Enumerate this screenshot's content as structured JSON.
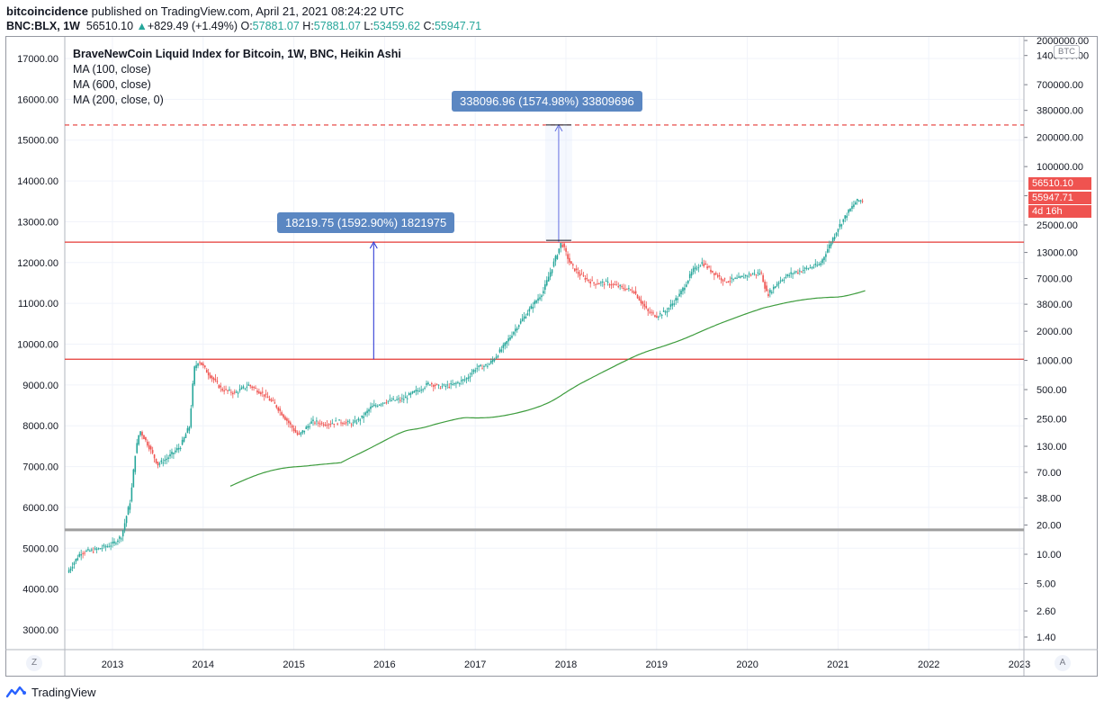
{
  "header": {
    "publisher": "bitcoincidence",
    "published_text": "published on TradingView.com, April 21, 2021 08:24:22 UTC",
    "symbol_line": "BNC:BLX, 1W",
    "last": "56510.10",
    "change": "+829.49 (+1.49%)",
    "open_label": "O:",
    "open": "57881.07",
    "high_label": "H:",
    "high": "57881.07",
    "low_label": "L:",
    "low": "53459.62",
    "close_label": "C:",
    "close": "55947.71"
  },
  "legend": {
    "title": "BraveNewCoin Liquid Index for Bitcoin, 1W, BNC, Heikin Ashi",
    "ma1": "MA (100, close)",
    "ma2": "MA (600, close)",
    "ma3": "MA (200, close, 0)"
  },
  "callouts": {
    "upper": "338096.96 (1574.98%) 33809696",
    "lower": "18219.75 (1592.90%) 1821975"
  },
  "price_boxes": {
    "last": "56510.10",
    "close": "55947.71",
    "countdown": "4d 16h"
  },
  "currency_tag": "BTC",
  "corner_left": "Z",
  "corner_right": "A",
  "footer": {
    "brand": "TradingView"
  },
  "colors": {
    "up": "#26a69a",
    "down": "#ef5350",
    "ma_blue": "#3f33a6",
    "ma_green": "#3d9c3d",
    "level_red": "#e53935",
    "measure_blue": "#1f2bd1",
    "callout_bg": "#5b87c2"
  },
  "chart_data": {
    "type": "candlestick",
    "y_left_ticks": [
      "17000.00",
      "16000.00",
      "15000.00",
      "14000.00",
      "13000.00",
      "12000.00",
      "11000.00",
      "10000.00",
      "9000.00",
      "8000.00",
      "7000.00",
      "6000.00",
      "5000.00",
      "4000.00",
      "3000.00"
    ],
    "y_right_ticks": [
      "2000000.00",
      "1400000.00",
      "700000.00",
      "380000.00",
      "200000.00",
      "100000.00",
      "50000.00",
      "25000.00",
      "13000.00",
      "7000.00",
      "3800.00",
      "2000.00",
      "1000.00",
      "500.00",
      "250.00",
      "130.00",
      "70.00",
      "38.00",
      "20.00",
      "10.00",
      "5.00",
      "2.60",
      "1.40"
    ],
    "y_right_log_scale": true,
    "x_ticks": [
      "2013",
      "2014",
      "2015",
      "2016",
      "2017",
      "2018",
      "2019",
      "2020",
      "2021",
      "2022",
      "2023"
    ],
    "x_range": [
      "2012-07",
      "2023-01"
    ],
    "horizontal_levels_left": [
      12500,
      9630,
      5450,
      15370
    ],
    "last_price": 56510.1,
    "close_price": 55947.71,
    "series": [
      {
        "name": "MA (100, close)"
      },
      {
        "name": "MA (600, close)"
      }
    ],
    "approx_path_left_units": [
      [
        2012.5,
        4400
      ],
      [
        2012.65,
        4900
      ],
      [
        2012.8,
        4950
      ],
      [
        2013.0,
        5100
      ],
      [
        2013.1,
        5300
      ],
      [
        2013.2,
        6200
      ],
      [
        2013.25,
        7300
      ],
      [
        2013.3,
        7900
      ],
      [
        2013.4,
        7500
      ],
      [
        2013.5,
        7050
      ],
      [
        2013.6,
        7200
      ],
      [
        2013.75,
        7500
      ],
      [
        2013.85,
        8000
      ],
      [
        2013.9,
        9400
      ],
      [
        2013.95,
        9600
      ],
      [
        2014.05,
        9300
      ],
      [
        2014.2,
        8900
      ],
      [
        2014.35,
        8800
      ],
      [
        2014.5,
        9000
      ],
      [
        2014.65,
        8800
      ],
      [
        2014.8,
        8500
      ],
      [
        2014.95,
        8050
      ],
      [
        2015.05,
        7750
      ],
      [
        2015.2,
        8100
      ],
      [
        2015.35,
        8050
      ],
      [
        2015.5,
        8100
      ],
      [
        2015.65,
        8050
      ],
      [
        2015.75,
        8200
      ],
      [
        2015.85,
        8450
      ],
      [
        2016.0,
        8600
      ],
      [
        2016.2,
        8650
      ],
      [
        2016.35,
        8850
      ],
      [
        2016.5,
        9050
      ],
      [
        2016.6,
        8950
      ],
      [
        2016.75,
        9000
      ],
      [
        2016.9,
        9150
      ],
      [
        2017.0,
        9400
      ],
      [
        2017.15,
        9500
      ],
      [
        2017.3,
        9900
      ],
      [
        2017.45,
        10400
      ],
      [
        2017.6,
        10850
      ],
      [
        2017.75,
        11300
      ],
      [
        2017.85,
        11900
      ],
      [
        2017.95,
        12500
      ],
      [
        2018.05,
        11950
      ],
      [
        2018.15,
        11700
      ],
      [
        2018.3,
        11500
      ],
      [
        2018.45,
        11500
      ],
      [
        2018.6,
        11400
      ],
      [
        2018.75,
        11300
      ],
      [
        2018.9,
        10800
      ],
      [
        2019.0,
        10700
      ],
      [
        2019.1,
        10800
      ],
      [
        2019.25,
        11200
      ],
      [
        2019.4,
        11800
      ],
      [
        2019.5,
        12000
      ],
      [
        2019.6,
        11800
      ],
      [
        2019.75,
        11550
      ],
      [
        2019.9,
        11600
      ],
      [
        2020.0,
        11700
      ],
      [
        2020.15,
        11750
      ],
      [
        2020.22,
        11200
      ],
      [
        2020.35,
        11550
      ],
      [
        2020.5,
        11750
      ],
      [
        2020.65,
        11850
      ],
      [
        2020.8,
        11950
      ],
      [
        2020.9,
        12400
      ],
      [
        2021.0,
        12850
      ],
      [
        2021.1,
        13200
      ],
      [
        2021.2,
        13500
      ],
      [
        2021.3,
        13550
      ]
    ],
    "measure_upper": {
      "from_left": 12500,
      "to_left": 15370,
      "x": 2017.92
    },
    "measure_lower": {
      "from_left": 9630,
      "to_left": 12500,
      "x": 2015.88
    }
  }
}
